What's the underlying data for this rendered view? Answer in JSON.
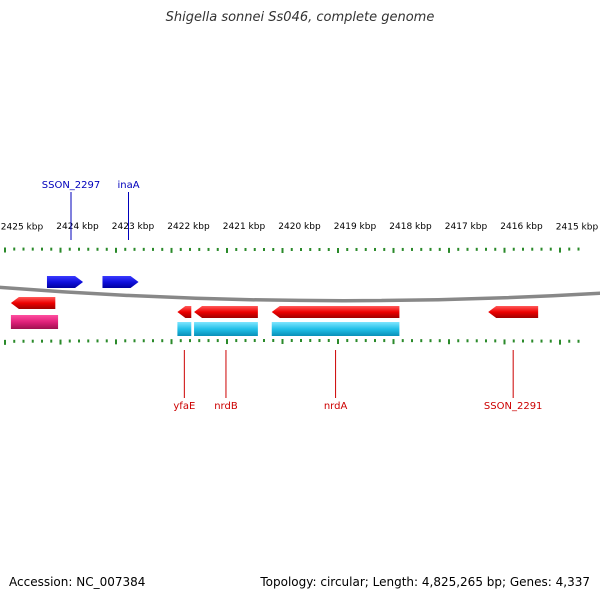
{
  "title": "Shigella sonnei Ss046, complete genome",
  "footer": {
    "accession": "Accession: NC_007384",
    "summary": "Topology: circular; Length: 4,825,265 bp; Genes: 4,337"
  },
  "colors": {
    "forward_gene": "#1010dd",
    "reverse_gene": "#ee0000",
    "cds_bar": "#22c0e8",
    "rna_bar": "#e0207a",
    "backbone": "#888888",
    "ticks": "#2a8a2a",
    "forward_label": "#0000bb",
    "reverse_label": "#cc0000"
  },
  "axis": {
    "tick_labels": [
      "2425 kbp",
      "2424 kbp",
      "2423 kbp",
      "2422 kbp",
      "2421 kbp",
      "2420 kbp",
      "2419 kbp",
      "2418 kbp",
      "2417 kbp",
      "2416 kbp",
      "2415 kbp"
    ],
    "label_kbp": [
      2425,
      2424,
      2423,
      2422,
      2421,
      2420,
      2419,
      2418,
      2417,
      2416,
      2415
    ]
  },
  "genes": [
    {
      "name": "SSON_2297",
      "strand": "forward",
      "start_kbp": 2424.55,
      "end_kbp": 2423.9,
      "labeled": true
    },
    {
      "name": "inaA",
      "strand": "forward",
      "start_kbp": 2423.55,
      "end_kbp": 2422.9,
      "labeled": true
    },
    {
      "name": "",
      "strand": "reverse",
      "start_kbp": 2425.2,
      "end_kbp": 2424.4,
      "labeled": false
    },
    {
      "name": "yfaE",
      "strand": "reverse",
      "start_kbp": 2422.2,
      "end_kbp": 2421.95,
      "labeled": true
    },
    {
      "name": "nrdB",
      "strand": "reverse",
      "start_kbp": 2421.9,
      "end_kbp": 2420.75,
      "labeled": true
    },
    {
      "name": "nrdA",
      "strand": "reverse",
      "start_kbp": 2420.5,
      "end_kbp": 2418.2,
      "labeled": true
    },
    {
      "name": "SSON_2291",
      "strand": "reverse",
      "start_kbp": 2416.6,
      "end_kbp": 2415.7,
      "labeled": true
    }
  ],
  "feature_bars": [
    {
      "kind": "rna",
      "start_kbp": 2425.2,
      "end_kbp": 2424.35
    },
    {
      "kind": "cds",
      "start_kbp": 2422.2,
      "end_kbp": 2421.95
    },
    {
      "kind": "cds",
      "start_kbp": 2421.9,
      "end_kbp": 2420.75
    },
    {
      "kind": "cds",
      "start_kbp": 2420.5,
      "end_kbp": 2418.2
    }
  ]
}
